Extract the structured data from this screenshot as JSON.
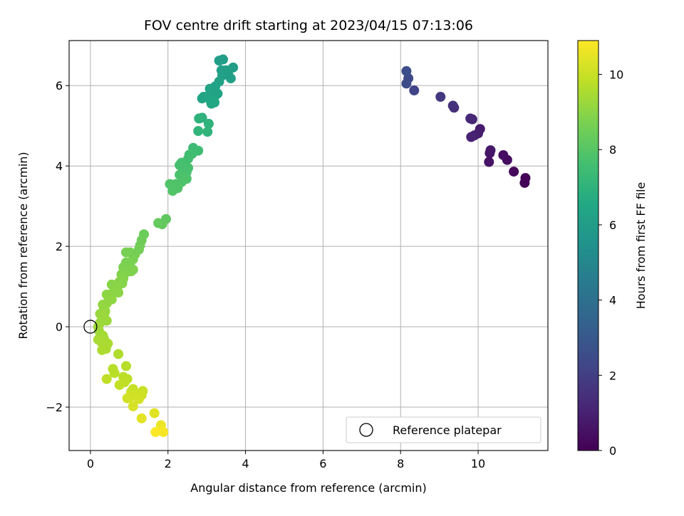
{
  "chart_data": {
    "type": "scatter",
    "title": "FOV centre drift starting at 2023/04/15 07:13:06",
    "xlabel": "Angular distance from reference (arcmin)",
    "ylabel": "Rotation from reference (arcmin)",
    "xlim": [
      -0.55,
      11.8
    ],
    "ylim": [
      -3.08,
      7.12
    ],
    "xticks": [
      0,
      2,
      4,
      6,
      8,
      10
    ],
    "yticks": [
      -2,
      0,
      2,
      4,
      6
    ],
    "xtick_labels": [
      "0",
      "2",
      "4",
      "6",
      "8",
      "10"
    ],
    "ytick_labels": [
      "−2",
      "0",
      "2",
      "4",
      "6"
    ],
    "grid": true,
    "colormap": "viridis",
    "colorbar": {
      "label": "Hours from first FF file",
      "range": [
        0,
        10.9
      ],
      "ticks": [
        0,
        2,
        4,
        6,
        8,
        10
      ],
      "tick_labels": [
        "0",
        "2",
        "4",
        "6",
        "8",
        "10"
      ]
    },
    "legend": {
      "position": "bottom-right",
      "entries": [
        "Reference platepar"
      ]
    },
    "reference_point": {
      "x": 0.0,
      "y": 0.0,
      "marker": "open-circle"
    },
    "series": [
      {
        "points": [
          {
            "x": 11.22,
            "y": 3.7,
            "c": 0.05
          },
          {
            "x": 11.2,
            "y": 3.58,
            "c": 0.12
          },
          {
            "x": 10.92,
            "y": 3.86,
            "c": 0.25
          },
          {
            "x": 10.75,
            "y": 4.15,
            "c": 0.35
          },
          {
            "x": 10.65,
            "y": 4.27,
            "c": 0.42
          },
          {
            "x": 10.28,
            "y": 4.1,
            "c": 0.55
          },
          {
            "x": 10.3,
            "y": 4.32,
            "c": 0.62
          },
          {
            "x": 10.32,
            "y": 4.39,
            "c": 0.68
          },
          {
            "x": 10.05,
            "y": 4.92,
            "c": 0.8
          },
          {
            "x": 10.0,
            "y": 4.81,
            "c": 0.88
          },
          {
            "x": 9.9,
            "y": 4.76,
            "c": 0.95
          },
          {
            "x": 9.82,
            "y": 4.72,
            "c": 1.02
          },
          {
            "x": 9.85,
            "y": 5.16,
            "c": 1.15
          },
          {
            "x": 9.8,
            "y": 5.18,
            "c": 1.22
          },
          {
            "x": 9.38,
            "y": 5.45,
            "c": 1.45
          },
          {
            "x": 9.35,
            "y": 5.5,
            "c": 1.52
          },
          {
            "x": 9.03,
            "y": 5.72,
            "c": 1.7
          },
          {
            "x": 8.35,
            "y": 5.88,
            "c": 2.2
          },
          {
            "x": 8.2,
            "y": 6.18,
            "c": 2.4
          },
          {
            "x": 8.15,
            "y": 6.05,
            "c": 2.5
          },
          {
            "x": 8.15,
            "y": 6.36,
            "c": 2.6
          },
          {
            "x": 3.68,
            "y": 6.45,
            "c": 6.0
          },
          {
            "x": 3.42,
            "y": 6.65,
            "c": 6.02
          },
          {
            "x": 3.32,
            "y": 6.62,
            "c": 6.05
          },
          {
            "x": 3.55,
            "y": 6.3,
            "c": 6.08
          },
          {
            "x": 3.5,
            "y": 6.38,
            "c": 6.1
          },
          {
            "x": 3.38,
            "y": 6.38,
            "c": 6.12
          },
          {
            "x": 3.4,
            "y": 6.25,
            "c": 6.15
          },
          {
            "x": 3.62,
            "y": 6.18,
            "c": 6.18
          },
          {
            "x": 3.32,
            "y": 6.1,
            "c": 6.2
          },
          {
            "x": 3.22,
            "y": 5.98,
            "c": 6.25
          },
          {
            "x": 3.08,
            "y": 5.92,
            "c": 6.28
          },
          {
            "x": 3.28,
            "y": 5.8,
            "c": 6.3
          },
          {
            "x": 3.2,
            "y": 5.72,
            "c": 6.32
          },
          {
            "x": 3.05,
            "y": 5.75,
            "c": 6.35
          },
          {
            "x": 2.92,
            "y": 5.72,
            "c": 6.38
          },
          {
            "x": 2.88,
            "y": 5.68,
            "c": 6.4
          },
          {
            "x": 3.1,
            "y": 5.62,
            "c": 6.45
          },
          {
            "x": 3.2,
            "y": 5.58,
            "c": 6.48
          },
          {
            "x": 3.12,
            "y": 5.55,
            "c": 6.5
          },
          {
            "x": 2.88,
            "y": 5.2,
            "c": 6.9
          },
          {
            "x": 2.8,
            "y": 5.18,
            "c": 6.95
          },
          {
            "x": 3.05,
            "y": 5.05,
            "c": 7.0
          },
          {
            "x": 3.02,
            "y": 4.85,
            "c": 7.05
          },
          {
            "x": 2.78,
            "y": 4.87,
            "c": 7.1
          },
          {
            "x": 2.65,
            "y": 4.45,
            "c": 7.4
          },
          {
            "x": 2.78,
            "y": 4.38,
            "c": 7.45
          },
          {
            "x": 2.62,
            "y": 4.3,
            "c": 7.5
          },
          {
            "x": 2.55,
            "y": 4.28,
            "c": 7.52
          },
          {
            "x": 2.52,
            "y": 4.18,
            "c": 7.55
          },
          {
            "x": 2.45,
            "y": 4.05,
            "c": 7.6
          },
          {
            "x": 2.35,
            "y": 4.08,
            "c": 7.62
          },
          {
            "x": 2.3,
            "y": 4.02,
            "c": 7.65
          },
          {
            "x": 2.4,
            "y": 3.95,
            "c": 7.68
          },
          {
            "x": 2.52,
            "y": 3.95,
            "c": 7.7
          },
          {
            "x": 2.48,
            "y": 3.85,
            "c": 7.72
          },
          {
            "x": 2.3,
            "y": 3.78,
            "c": 7.75
          },
          {
            "x": 2.4,
            "y": 3.72,
            "c": 7.78
          },
          {
            "x": 2.48,
            "y": 3.68,
            "c": 7.8
          },
          {
            "x": 2.35,
            "y": 3.6,
            "c": 7.82
          },
          {
            "x": 2.2,
            "y": 3.55,
            "c": 7.85
          },
          {
            "x": 2.05,
            "y": 3.55,
            "c": 7.88
          },
          {
            "x": 2.25,
            "y": 3.45,
            "c": 7.9
          },
          {
            "x": 2.12,
            "y": 3.38,
            "c": 7.92
          },
          {
            "x": 1.95,
            "y": 2.68,
            "c": 8.2
          },
          {
            "x": 1.85,
            "y": 2.55,
            "c": 8.25
          },
          {
            "x": 1.75,
            "y": 2.58,
            "c": 8.28
          },
          {
            "x": 1.38,
            "y": 2.3,
            "c": 8.4
          },
          {
            "x": 1.32,
            "y": 2.15,
            "c": 8.45
          },
          {
            "x": 1.28,
            "y": 2.02,
            "c": 8.5
          },
          {
            "x": 1.25,
            "y": 1.92,
            "c": 8.55
          },
          {
            "x": 1.15,
            "y": 1.8,
            "c": 8.6
          },
          {
            "x": 1.02,
            "y": 1.85,
            "c": 8.62
          },
          {
            "x": 0.92,
            "y": 1.85,
            "c": 8.65
          },
          {
            "x": 1.1,
            "y": 1.68,
            "c": 8.68
          },
          {
            "x": 1.02,
            "y": 1.58,
            "c": 8.7
          },
          {
            "x": 0.92,
            "y": 1.6,
            "c": 8.72
          },
          {
            "x": 0.85,
            "y": 1.48,
            "c": 8.75
          },
          {
            "x": 1.1,
            "y": 1.42,
            "c": 8.78
          },
          {
            "x": 1.05,
            "y": 1.38,
            "c": 8.8
          },
          {
            "x": 0.92,
            "y": 1.35,
            "c": 8.82
          },
          {
            "x": 0.8,
            "y": 1.3,
            "c": 8.85
          },
          {
            "x": 0.85,
            "y": 1.2,
            "c": 8.88
          },
          {
            "x": 0.75,
            "y": 1.12,
            "c": 8.9
          },
          {
            "x": 0.82,
            "y": 1.08,
            "c": 8.92
          },
          {
            "x": 0.55,
            "y": 1.05,
            "c": 8.95
          },
          {
            "x": 0.7,
            "y": 1.0,
            "c": 8.98
          },
          {
            "x": 0.72,
            "y": 0.85,
            "c": 9.0
          },
          {
            "x": 0.55,
            "y": 0.82,
            "c": 9.02
          },
          {
            "x": 0.42,
            "y": 0.8,
            "c": 9.05
          },
          {
            "x": 0.55,
            "y": 0.68,
            "c": 9.08
          },
          {
            "x": 0.42,
            "y": 0.58,
            "c": 9.1
          },
          {
            "x": 0.32,
            "y": 0.55,
            "c": 9.12
          },
          {
            "x": 0.35,
            "y": 0.45,
            "c": 9.15
          },
          {
            "x": 0.38,
            "y": 0.38,
            "c": 9.18
          },
          {
            "x": 0.25,
            "y": 0.32,
            "c": 9.2
          },
          {
            "x": 0.35,
            "y": 0.28,
            "c": 9.22
          },
          {
            "x": 0.42,
            "y": 0.15,
            "c": 9.25
          },
          {
            "x": 0.25,
            "y": 0.1,
            "c": 9.28
          },
          {
            "x": 0.2,
            "y": 0.0,
            "c": 9.3
          },
          {
            "x": 0.22,
            "y": -0.1,
            "c": 9.35
          },
          {
            "x": 0.32,
            "y": -0.22,
            "c": 9.4
          },
          {
            "x": 0.35,
            "y": -0.3,
            "c": 9.42
          },
          {
            "x": 0.2,
            "y": -0.32,
            "c": 9.45
          },
          {
            "x": 0.28,
            "y": -0.38,
            "c": 9.48
          },
          {
            "x": 0.45,
            "y": -0.42,
            "c": 9.5
          },
          {
            "x": 0.4,
            "y": -0.55,
            "c": 9.52
          },
          {
            "x": 0.3,
            "y": -0.58,
            "c": 9.55
          },
          {
            "x": 0.72,
            "y": -0.68,
            "c": 9.6
          },
          {
            "x": 0.92,
            "y": -0.98,
            "c": 9.7
          },
          {
            "x": 0.58,
            "y": -1.05,
            "c": 9.72
          },
          {
            "x": 0.62,
            "y": -1.15,
            "c": 9.75
          },
          {
            "x": 0.85,
            "y": -1.25,
            "c": 9.78
          },
          {
            "x": 0.95,
            "y": -1.3,
            "c": 9.8
          },
          {
            "x": 0.42,
            "y": -1.3,
            "c": 9.82
          },
          {
            "x": 0.88,
            "y": -1.38,
            "c": 9.85
          },
          {
            "x": 0.75,
            "y": -1.45,
            "c": 9.88
          },
          {
            "x": 1.1,
            "y": -1.55,
            "c": 9.95
          },
          {
            "x": 1.35,
            "y": -1.6,
            "c": 10.0
          },
          {
            "x": 1.05,
            "y": -1.62,
            "c": 10.02
          },
          {
            "x": 1.15,
            "y": -1.65,
            "c": 10.05
          },
          {
            "x": 1.32,
            "y": -1.7,
            "c": 10.08
          },
          {
            "x": 1.12,
            "y": -1.72,
            "c": 10.1
          },
          {
            "x": 1.02,
            "y": -1.75,
            "c": 10.12
          },
          {
            "x": 0.95,
            "y": -1.78,
            "c": 10.15
          },
          {
            "x": 1.25,
            "y": -1.8,
            "c": 10.18
          },
          {
            "x": 1.1,
            "y": -1.98,
            "c": 10.25
          },
          {
            "x": 1.65,
            "y": -2.15,
            "c": 10.4
          },
          {
            "x": 1.32,
            "y": -2.28,
            "c": 10.45
          },
          {
            "x": 1.82,
            "y": -2.45,
            "c": 10.6
          },
          {
            "x": 1.78,
            "y": -2.58,
            "c": 10.7
          },
          {
            "x": 1.88,
            "y": -2.62,
            "c": 10.75
          },
          {
            "x": 1.68,
            "y": -2.62,
            "c": 10.85
          }
        ]
      }
    ]
  }
}
